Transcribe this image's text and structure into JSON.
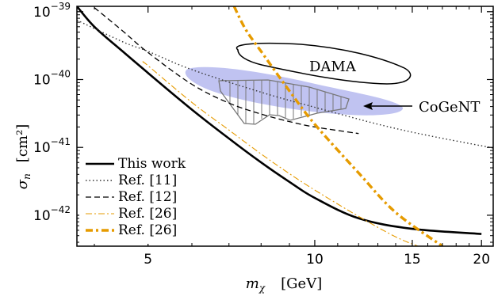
{
  "chart_data": {
    "type": "line",
    "title": "",
    "xlabel": {
      "symbol": "m",
      "sub": "χ",
      "unit": "[GeV]"
    },
    "ylabel": {
      "symbol": "σ",
      "sub": "n",
      "unit": "[cm²]"
    },
    "xscale": "log",
    "yscale": "log",
    "xlim": [
      3.72,
      21.0
    ],
    "ylim": [
      3.5e-43,
      1.2e-39
    ],
    "grid": false,
    "legend_position": "bottom-left",
    "x_ticks": [
      {
        "value": 5,
        "label": "5"
      },
      {
        "value": 10,
        "label": "10"
      },
      {
        "value": 15,
        "label": "15"
      },
      {
        "value": 20,
        "label": "20"
      }
    ],
    "y_ticks": [
      {
        "value": 1e-39,
        "base": "10",
        "exp": "−39"
      },
      {
        "value": 1e-40,
        "base": "10",
        "exp": "−40"
      },
      {
        "value": 1e-41,
        "base": "10",
        "exp": "−41"
      },
      {
        "value": 1e-42,
        "base": "10",
        "exp": "−42"
      }
    ],
    "series": [
      {
        "name": "This work",
        "color": "#000000",
        "style": "solid-thick",
        "points": [
          [
            3.72,
            1.2e-39
          ],
          [
            4.0,
            6e-40
          ],
          [
            4.5,
            2.6e-40
          ],
          [
            5.0,
            1.25e-40
          ],
          [
            6.0,
            3.6e-41
          ],
          [
            7.0,
            1.35e-41
          ],
          [
            8.0,
            6e-42
          ],
          [
            9.0,
            3.1e-42
          ],
          [
            10.0,
            1.8e-42
          ],
          [
            12.0,
            9e-43
          ],
          [
            15.0,
            6.3e-43
          ],
          [
            20.0,
            5.3e-43
          ]
        ]
      },
      {
        "name": "Ref. [11]",
        "color": "#333333",
        "style": "dotted",
        "points": [
          [
            3.72,
            7.5e-40
          ],
          [
            4.5,
            3.6e-40
          ],
          [
            5.0,
            2.6e-40
          ],
          [
            6.0,
            1.4e-40
          ],
          [
            8.0,
            6.5e-41
          ],
          [
            10.0,
            3.9e-41
          ],
          [
            13.0,
            2.2e-41
          ],
          [
            16.0,
            1.5e-41
          ],
          [
            21.0,
            9.8e-42
          ]
        ]
      },
      {
        "name": "Ref. [12]",
        "color": "#000000",
        "style": "dashed",
        "points": [
          [
            4.0,
            1.15e-39
          ],
          [
            4.5,
            5.2e-40
          ],
          [
            5.0,
            2.5e-40
          ],
          [
            6.0,
            8.5e-41
          ],
          [
            7.0,
            4.5e-41
          ],
          [
            8.0,
            3.1e-41
          ],
          [
            9.0,
            2.4e-41
          ],
          [
            10.0,
            2e-41
          ],
          [
            12.0,
            1.6e-41
          ]
        ]
      },
      {
        "name": "Ref. [26]",
        "color": "#e69b00",
        "style": "dash-dot-thin",
        "points": [
          [
            4.9,
            1.8e-40
          ],
          [
            5.0,
            1.6e-40
          ],
          [
            6.0,
            4.6e-41
          ],
          [
            7.0,
            1.8e-41
          ],
          [
            8.0,
            8e-42
          ],
          [
            9.0,
            4.1e-42
          ],
          [
            10.0,
            2.35e-42
          ],
          [
            12.0,
            9.6e-43
          ],
          [
            14.0,
            4.8e-43
          ],
          [
            15.5,
            3.4e-43
          ]
        ]
      },
      {
        "name": "Ref. [26]",
        "color": "#e69b00",
        "style": "dash-dot-thick",
        "points": [
          [
            7.15,
            1.2e-39
          ],
          [
            7.5,
            5.5e-40
          ],
          [
            8.0,
            2.6e-40
          ],
          [
            9.0,
            6.8e-41
          ],
          [
            10.0,
            2.2e-41
          ],
          [
            12.0,
            4.2e-42
          ],
          [
            14.0,
            1.1e-42
          ],
          [
            17.0,
            3.5e-43
          ]
        ]
      }
    ],
    "annotations": {
      "dama_label": "DAMA",
      "cogent_label": "CoGeNT"
    },
    "colors": {
      "cogent_band": "#b9bdf0",
      "hatched_region": "#777777",
      "orange": "#e69b00"
    }
  }
}
